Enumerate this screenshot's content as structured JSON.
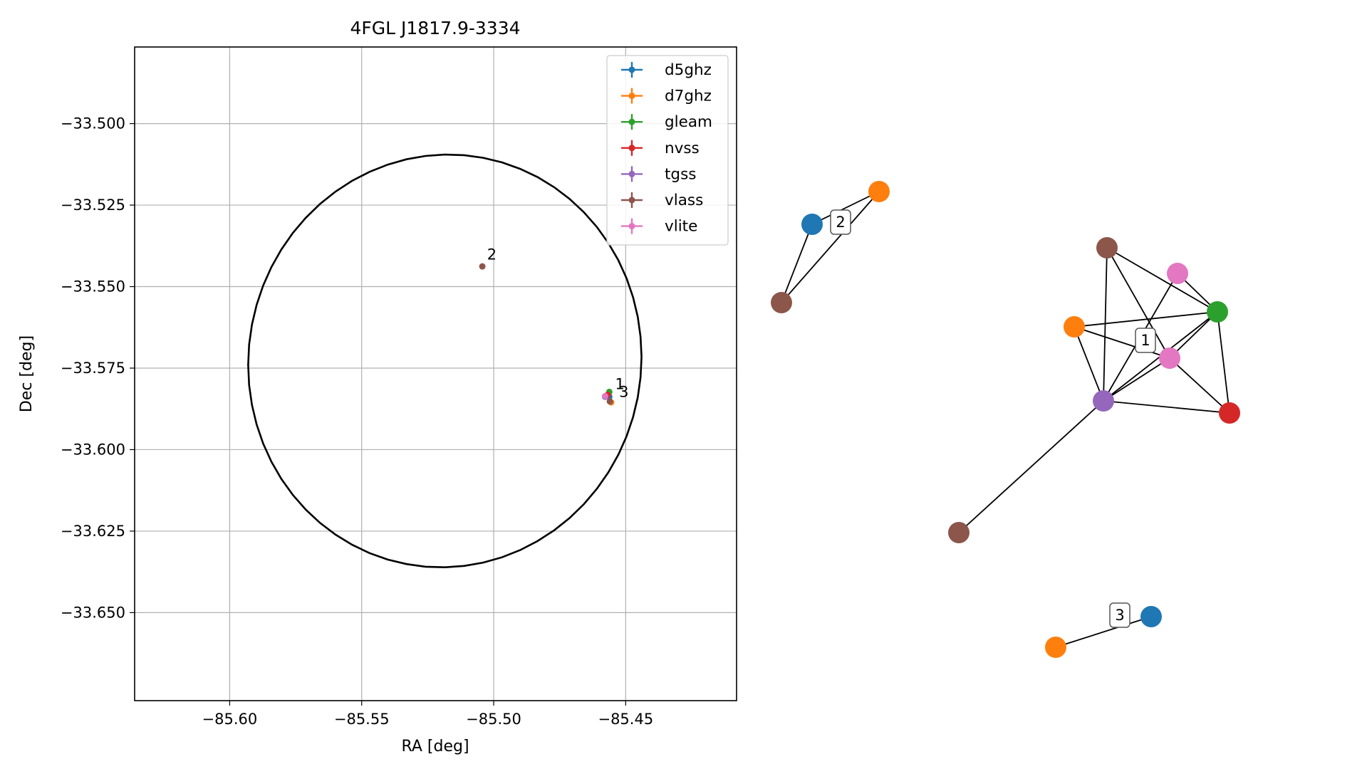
{
  "chart_data": [
    {
      "type": "scatter",
      "title": "4FGL J1817.9-3334",
      "xlabel": "RA [deg]",
      "ylabel": "Dec [deg]",
      "xlim": [
        -85.636,
        -85.408
      ],
      "ylim": [
        -33.677,
        -33.4765
      ],
      "xticks": [
        -85.6,
        -85.55,
        -85.5,
        -85.45
      ],
      "xtick_labels": [
        "−85.60",
        "−85.55",
        "−85.50",
        "−85.45"
      ],
      "yticks": [
        -33.5,
        -33.525,
        -33.55,
        -33.575,
        -33.6,
        -33.625,
        -33.65
      ],
      "ytick_labels": [
        "−33.500",
        "−33.525",
        "−33.550",
        "−33.575",
        "−33.600",
        "−33.625",
        "−33.650"
      ],
      "grid": true,
      "legend": "top-right",
      "ellipse": {
        "center_ra": -85.5185,
        "center_dec": -33.5728,
        "ra_radius": 0.0745,
        "dec_radius": 0.0633,
        "tilt": 0.012,
        "color": "#000000"
      },
      "series": [
        {
          "name": "d5ghz",
          "color": "#1f77b4",
          "points": [
            {
              "ra": -85.4562,
              "dec": -33.5838
            }
          ]
        },
        {
          "name": "d7ghz",
          "color": "#ff7f0e",
          "points": [
            {
              "ra": -85.4555,
              "dec": -33.5855
            }
          ]
        },
        {
          "name": "gleam",
          "color": "#2ca02c",
          "points": [
            {
              "ra": -85.4562,
              "dec": -33.5823
            }
          ]
        },
        {
          "name": "nvss",
          "color": "#d62728",
          "points": [
            {
              "ra": -85.4568,
              "dec": -33.5832
            }
          ]
        },
        {
          "name": "tgss",
          "color": "#9467bd",
          "points": [
            {
              "ra": -85.4578,
              "dec": -33.5838
            }
          ]
        },
        {
          "name": "vlass",
          "color": "#8c564b",
          "points": [
            {
              "ra": -85.5043,
              "dec": -33.5438
            },
            {
              "ra": -85.456,
              "dec": -33.5852
            }
          ]
        },
        {
          "name": "vlite",
          "color": "#e377c2",
          "points": [
            {
              "ra": -85.4578,
              "dec": -33.5836
            }
          ]
        }
      ],
      "point_labels": [
        {
          "text": "2",
          "ra": -85.5025,
          "dec": -33.5417
        },
        {
          "text": "1",
          "ra": -85.454,
          "dec": -33.5815
        },
        {
          "text": "3",
          "ra": -85.4525,
          "dec": -33.5838
        }
      ]
    },
    {
      "type": "network",
      "groups": [
        {
          "label": "1",
          "nodes": [
            {
              "id": "vlass_a",
              "catalog": "vlass",
              "color": "#8c564b"
            },
            {
              "id": "vlite_a",
              "catalog": "vlite",
              "color": "#e377c2"
            },
            {
              "id": "gleam",
              "catalog": "gleam",
              "color": "#2ca02c"
            },
            {
              "id": "d7ghz_a",
              "catalog": "d7ghz",
              "color": "#ff7f0e"
            },
            {
              "id": "vlite_b",
              "catalog": "vlite",
              "color": "#e377c2"
            },
            {
              "id": "tgss",
              "catalog": "tgss",
              "color": "#9467bd"
            },
            {
              "id": "nvss",
              "catalog": "nvss",
              "color": "#d62728"
            },
            {
              "id": "vlass_b",
              "catalog": "vlass",
              "color": "#8c564b"
            }
          ],
          "edges": [
            [
              "vlass_a",
              "gleam"
            ],
            [
              "vlass_a",
              "tgss"
            ],
            [
              "vlass_a",
              "vlite_b"
            ],
            [
              "vlite_a",
              "gleam"
            ],
            [
              "vlite_a",
              "tgss"
            ],
            [
              "gleam",
              "d7ghz_a"
            ],
            [
              "gleam",
              "tgss"
            ],
            [
              "gleam",
              "vlite_b"
            ],
            [
              "gleam",
              "nvss"
            ],
            [
              "d7ghz_a",
              "tgss"
            ],
            [
              "d7ghz_a",
              "vlite_b"
            ],
            [
              "vlite_b",
              "tgss"
            ],
            [
              "vlite_b",
              "nvss"
            ],
            [
              "tgss",
              "nvss"
            ],
            [
              "tgss",
              "vlass_b"
            ]
          ]
        },
        {
          "label": "2",
          "nodes": [
            {
              "id": "d5ghz_b",
              "catalog": "d5ghz",
              "color": "#1f77b4"
            },
            {
              "id": "d7ghz_b",
              "catalog": "d7ghz",
              "color": "#ff7f0e"
            },
            {
              "id": "vlass_c",
              "catalog": "vlass",
              "color": "#8c564b"
            }
          ],
          "edges": [
            [
              "d5ghz_b",
              "d7ghz_b"
            ],
            [
              "d5ghz_b",
              "vlass_c"
            ],
            [
              "d7ghz_b",
              "vlass_c"
            ]
          ]
        },
        {
          "label": "3",
          "nodes": [
            {
              "id": "d5ghz_c",
              "catalog": "d5ghz",
              "color": "#1f77b4"
            },
            {
              "id": "d7ghz_c",
              "catalog": "d7ghz",
              "color": "#ff7f0e"
            }
          ],
          "edges": [
            [
              "d5ghz_c",
              "d7ghz_c"
            ]
          ]
        }
      ]
    }
  ]
}
